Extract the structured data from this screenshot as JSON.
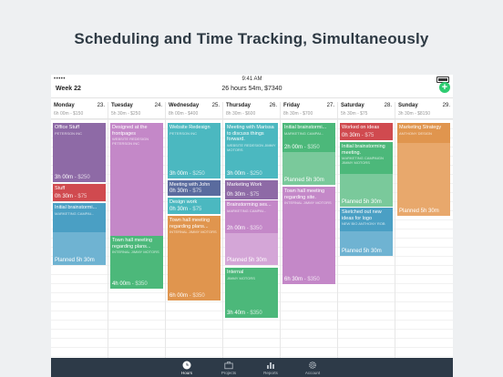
{
  "headline": "Scheduling and Time Tracking, Simultaneously",
  "status": {
    "time": "9:41 AM",
    "carrier": "•••••"
  },
  "topbar": {
    "week": "Week 22",
    "summary": "26 hours 54m, $7340"
  },
  "days": [
    {
      "name": "Monday",
      "date": "23.",
      "total": "6h 00m - $150"
    },
    {
      "name": "Tuesday",
      "date": "24.",
      "total": "5h 30m - $250"
    },
    {
      "name": "Wednesday",
      "date": "25.",
      "total": "8h 00m - $400"
    },
    {
      "name": "Thursday",
      "date": "26.",
      "total": "8h 30m - $600"
    },
    {
      "name": "Friday",
      "date": "27.",
      "total": "8h 30m - $700"
    },
    {
      "name": "Saturday",
      "date": "28.",
      "total": "5h 30m - $75"
    },
    {
      "name": "Sunday",
      "date": "29.",
      "total": "3h 30m - $8150"
    }
  ],
  "events": [
    {
      "title": "Office Stuff",
      "client": "PETERSON INC",
      "dur": "3h 00m",
      "money": "- $250"
    },
    {
      "title": "Stuff",
      "client": "",
      "dur": "0h 30m",
      "money": "- $75"
    },
    {
      "title": "Initial brainstormi...",
      "client": "MARKETING CAMPAI...",
      "dur": "",
      "money": ""
    },
    {
      "title": "Planned 5h 30m",
      "client": "",
      "dur": "",
      "money": ""
    },
    {
      "title": "Designed at the frontpages",
      "client": "WEBSITE REDESIGN PETERSON INC",
      "dur": "",
      "money": ""
    },
    {
      "title": "Town hall meeting regarding plans...",
      "client": "INTERNAL JIMMY MOTORS",
      "dur": "4h 00m",
      "money": "- $350"
    },
    {
      "title": "Website Redesign",
      "client": "PETERSON INC",
      "dur": "3h 00m",
      "money": "- $250"
    },
    {
      "title": "Meeting with John",
      "client": "",
      "dur": "0h 30m",
      "money": "- $75"
    },
    {
      "title": "Design work",
      "client": "",
      "dur": "0h 30m",
      "money": "- $75"
    },
    {
      "title": "Town hall meeting regarding plans...",
      "client": "INTERNAL JIMMY MOTORS",
      "dur": "6h 00m",
      "money": "- $350"
    },
    {
      "title": "Meeting with Marissa to discuss things forward.",
      "client": "WEBSITE REDESIGN JIMMY MOTORS",
      "dur": "3h 00m",
      "money": "- $250"
    },
    {
      "title": "Marketing Work",
      "client": "",
      "dur": "0h 30m",
      "money": "- $75"
    },
    {
      "title": "Brainstorming ses...",
      "client": "MARKETING CAMPAI...",
      "dur": "2h 00m",
      "money": "- $350"
    },
    {
      "title": "Planned 5h 30m",
      "client": "",
      "dur": "",
      "money": ""
    },
    {
      "title": "Internal",
      "client": "JIMMY MOTORS",
      "dur": "3h 40m",
      "money": "- $350"
    },
    {
      "title": "Initial brainstormi...",
      "client": "MARKETING CAMPAI...",
      "dur": "2h 00m",
      "money": "- $350"
    },
    {
      "title": "Planned 5h 30m",
      "client": "",
      "dur": "",
      "money": ""
    },
    {
      "title": "Town hall meeting regarding site.",
      "client": "INTERNAL JIMMY MOTORS",
      "dur": "6h 30m",
      "money": "- $350"
    },
    {
      "title": "Worked on ideas",
      "client": "",
      "dur": "0h 30m",
      "money": "- $75"
    },
    {
      "title": "Initial brainstorming meeting.",
      "client": "MARKETING CAMPAIGN JIMMY MOTORS",
      "dur": "",
      "money": ""
    },
    {
      "title": "Planned 5h 30m",
      "client": "",
      "dur": "",
      "money": ""
    },
    {
      "title": "Sketched out new ideas for logo",
      "client": "NEW BIO ANTHONY ROB",
      "dur": "",
      "money": ""
    },
    {
      "title": "Planned 5h 30m",
      "client": "",
      "dur": "",
      "money": ""
    },
    {
      "title": "Marketing Strategy",
      "client": "ANTHONY DESIGN",
      "dur": "",
      "money": ""
    },
    {
      "title": "Planned 5h 30m",
      "client": "",
      "dur": "",
      "money": ""
    }
  ],
  "tabs": [
    {
      "label": "Hours",
      "icon": "clock-icon"
    },
    {
      "label": "Projects",
      "icon": "briefcase-icon"
    },
    {
      "label": "Reports",
      "icon": "bar-chart-icon"
    },
    {
      "label": "Account",
      "icon": "gear-icon"
    }
  ],
  "colors": {
    "purple": "#8e6aa6",
    "red": "#d04a4f",
    "blue": "#4a9fc4",
    "teal": "#4bb8c0",
    "green": "#4cb87a",
    "orange": "#e0954e",
    "pink": "#c488c8",
    "navy": "#5a6b9e",
    "tabbar": "#2d3a48"
  }
}
